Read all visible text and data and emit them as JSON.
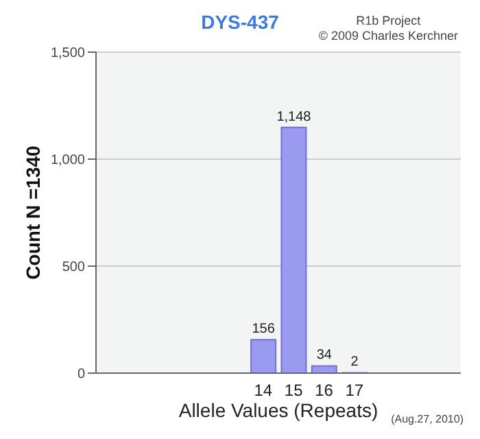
{
  "chart_data": {
    "type": "bar",
    "title": "DYS-437",
    "xlabel": "Allele Values (Repeats)",
    "ylabel": "Count N =1340",
    "categories": [
      null,
      null,
      null,
      null,
      null,
      "14",
      "15",
      "16",
      "17",
      null,
      null,
      null
    ],
    "values": [
      null,
      null,
      null,
      null,
      null,
      156,
      1148,
      34,
      2,
      null,
      null,
      null
    ],
    "value_labels": [
      null,
      null,
      null,
      null,
      null,
      "156",
      "1,148",
      "34",
      "2",
      null,
      null,
      null
    ],
    "color": "#9a9af0",
    "ylim": [
      0,
      1500
    ],
    "yticks": [
      0,
      {
        "value": 500,
        "label": "500"
      },
      {
        "value": 1000,
        "label": "1,000"
      },
      {
        "value": 1500,
        "label": "1,500"
      }
    ],
    "grid": "y",
    "annotations": [
      "R1b Project",
      "© 2009 Charles Kerchner",
      "(Aug.27, 2010)"
    ]
  }
}
